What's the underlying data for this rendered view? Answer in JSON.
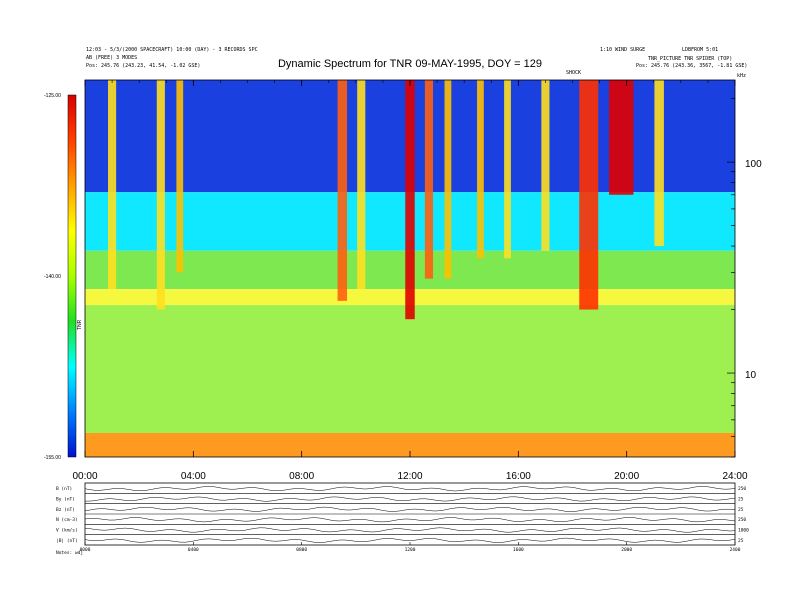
{
  "header": {
    "left_line1": "12:03 - 5/3/(2000 SPACECRAFT) 10:00 (DAY) - 3 RECORDS SPC",
    "left_line2": "AB (FREE) 3 MODES",
    "left_line3": "Pos:    245.76 (243.23, 41.54, -1.02 GSE)",
    "right_line1": "1:10 WIND SURGE",
    "right_line2": "LDBFROM 5:01",
    "right_line3": "TNR_PICTURE TNR SPIDER (TOP)",
    "right_line4": "Pos:    245.76 (243.36, 3567, -1.81 GSE)",
    "right_unit": "kHz",
    "right_marker": "SHOCK"
  },
  "chart_data": {
    "type": "heatmap",
    "title": "Dynamic Spectrum for TNR 09-MAY-1995, DOY = 129",
    "x_ticks": [
      "00:00",
      "04:00",
      "08:00",
      "12:00",
      "16:00",
      "20:00",
      "24:00"
    ],
    "x_range": [
      0,
      24
    ],
    "y_scale": "log",
    "y_range": [
      4,
      245
    ],
    "y_tick_labels": [
      {
        "value": 10,
        "label": "10"
      },
      {
        "value": 100,
        "label": "100"
      }
    ],
    "colorbar": {
      "labels": [
        "-125.00",
        "-140.00",
        "-155.00"
      ],
      "range": [
        -155,
        -125
      ],
      "unit": "TNR",
      "colors": [
        "#d80000",
        "#ff4000",
        "#ffa000",
        "#ffff00",
        "#a8ff00",
        "#20e020",
        "#00ffff",
        "#0080ff",
        "#0010d0"
      ]
    },
    "bands": [
      {
        "from_y": 245,
        "to_y": 72,
        "level": "deep-blue",
        "color": "#1a40e0"
      },
      {
        "from_y": 72,
        "to_y": 38,
        "level": "cyan",
        "color": "#10e8ff"
      },
      {
        "from_y": 38,
        "to_y": 25,
        "level": "green",
        "color": "#7ee850"
      },
      {
        "from_y": 25,
        "to_y": 21,
        "level": "yellow",
        "color": "#f6f840"
      },
      {
        "from_y": 21,
        "to_y": 5.2,
        "level": "green",
        "color": "#9ef050"
      },
      {
        "from_y": 5.2,
        "to_y": 4,
        "level": "orange",
        "color": "#ff9a20"
      }
    ],
    "bursts": [
      {
        "t": 1.0,
        "width": 0.3,
        "top": 245,
        "bottom": 25,
        "color": "#ffe020"
      },
      {
        "t": 2.8,
        "width": 0.3,
        "top": 245,
        "bottom": 20,
        "color": "#ffe020"
      },
      {
        "t": 3.5,
        "width": 0.25,
        "top": 245,
        "bottom": 30,
        "color": "#ffc000"
      },
      {
        "t": 9.5,
        "width": 0.35,
        "top": 245,
        "bottom": 22,
        "color": "#ff6010"
      },
      {
        "t": 10.2,
        "width": 0.3,
        "top": 245,
        "bottom": 25,
        "color": "#ffe020"
      },
      {
        "t": 12.0,
        "width": 0.35,
        "top": 245,
        "bottom": 18,
        "color": "#e00000"
      },
      {
        "t": 12.7,
        "width": 0.3,
        "top": 245,
        "bottom": 28,
        "color": "#ff6010"
      },
      {
        "t": 13.4,
        "width": 0.25,
        "top": 245,
        "bottom": 28,
        "color": "#ffc000"
      },
      {
        "t": 14.6,
        "width": 0.25,
        "top": 245,
        "bottom": 35,
        "color": "#ffc000"
      },
      {
        "t": 15.6,
        "width": 0.25,
        "top": 245,
        "bottom": 35,
        "color": "#ffe020"
      },
      {
        "t": 17.0,
        "width": 0.3,
        "top": 245,
        "bottom": 38,
        "color": "#ffe020"
      },
      {
        "t": 18.6,
        "width": 0.7,
        "top": 245,
        "bottom": 20,
        "color": "#ff3000"
      },
      {
        "t": 19.8,
        "width": 0.9,
        "top": 245,
        "bottom": 70,
        "color": "#e00000"
      },
      {
        "t": 21.2,
        "width": 0.35,
        "top": 245,
        "bottom": 40,
        "color": "#ffe020"
      }
    ],
    "lower_panels": {
      "row_labels": [
        "B (nT)",
        "By (nT)",
        "Bz (nT)",
        "N (cm-3)",
        "V (km/s)",
        "|B| (nT)"
      ],
      "right_labels": [
        "250",
        "25",
        "25",
        "250",
        "1000",
        "25"
      ],
      "x_tick_labels": [
        "0000",
        "0400",
        "0800",
        "1200",
        "1600",
        "2000",
        "2400"
      ],
      "footer_label": "Notes: wdj"
    }
  }
}
